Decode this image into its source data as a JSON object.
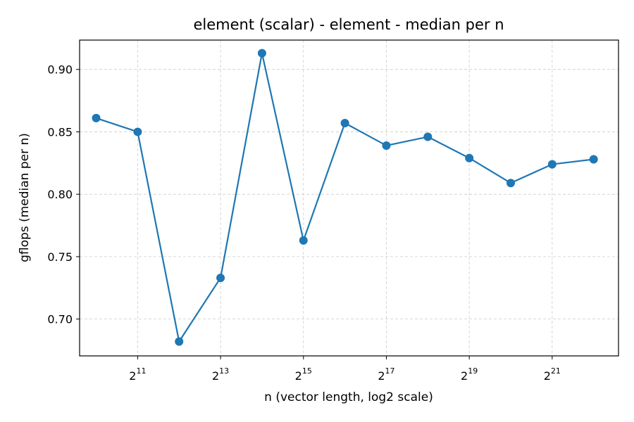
{
  "chart_data": {
    "type": "line",
    "title": "element (scalar) - element - median per n",
    "xlabel": "n (vector length, log2 scale)",
    "ylabel": "gflops (median per n)",
    "x_scale": "log2",
    "x": [
      1024,
      2048,
      4096,
      8192,
      16384,
      32768,
      65536,
      131072,
      262144,
      524288,
      1048576,
      2097152,
      4194304
    ],
    "series": [
      {
        "values": [
          0.861,
          0.85,
          0.682,
          0.733,
          0.913,
          0.763,
          0.857,
          0.839,
          0.846,
          0.829,
          0.809,
          0.824,
          0.828
        ],
        "color": "#1f77b4"
      }
    ],
    "xticks": [
      {
        "base": "2",
        "exp": "11"
      },
      {
        "base": "2",
        "exp": "13"
      },
      {
        "base": "2",
        "exp": "15"
      },
      {
        "base": "2",
        "exp": "17"
      },
      {
        "base": "2",
        "exp": "19"
      },
      {
        "base": "2",
        "exp": "21"
      }
    ],
    "yticks": [
      "0.70",
      "0.75",
      "0.80",
      "0.85",
      "0.90"
    ],
    "xlim_log2": [
      9.6,
      22.6
    ],
    "ylim": [
      0.6705,
      0.9235
    ],
    "grid": true,
    "marker": "circle"
  }
}
